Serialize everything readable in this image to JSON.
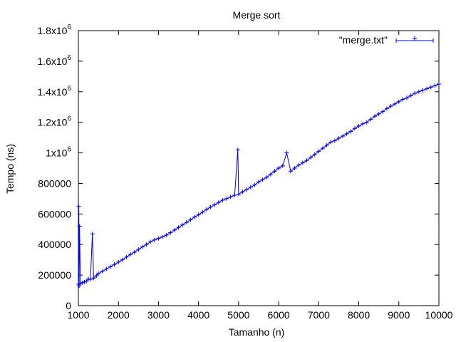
{
  "chart_data": {
    "type": "line",
    "title": "Merge sort",
    "xlabel": "Tamanho (n)",
    "ylabel": "Tempo (ns)",
    "xlim": [
      1000,
      10000
    ],
    "ylim": [
      0,
      1800000
    ],
    "x_ticks": [
      {
        "value": 1000,
        "label": "1000"
      },
      {
        "value": 2000,
        "label": "2000"
      },
      {
        "value": 3000,
        "label": "3000"
      },
      {
        "value": 4000,
        "label": "4000"
      },
      {
        "value": 5000,
        "label": "5000"
      },
      {
        "value": 6000,
        "label": "6000"
      },
      {
        "value": 7000,
        "label": "7000"
      },
      {
        "value": 8000,
        "label": "8000"
      },
      {
        "value": 9000,
        "label": "9000"
      },
      {
        "value": 10000,
        "label": "10000"
      }
    ],
    "y_ticks": [
      {
        "value": 0,
        "label": "0"
      },
      {
        "value": 200000,
        "label": "200000"
      },
      {
        "value": 400000,
        "label": "400000"
      },
      {
        "value": 600000,
        "label": "600000"
      },
      {
        "value": 800000,
        "label": "800000"
      },
      {
        "value": 1000000,
        "base": "1x10",
        "exp": "6"
      },
      {
        "value": 1200000,
        "base": "1.2x10",
        "exp": "6"
      },
      {
        "value": 1400000,
        "base": "1.4x10",
        "exp": "6"
      },
      {
        "value": 1600000,
        "base": "1.6x10",
        "exp": "6"
      },
      {
        "value": 1800000,
        "base": "1.8x10",
        "exp": "6"
      }
    ],
    "grid": false,
    "legend": "top-right",
    "series": [
      {
        "name": "\"merge.txt\"",
        "color": "#0000ff",
        "marker": "plus",
        "points": [
          [
            1000,
            140000
          ],
          [
            1010,
            650000
          ],
          [
            1020,
            130000
          ],
          [
            1030,
            520000
          ],
          [
            1050,
            145000
          ],
          [
            1100,
            150000
          ],
          [
            1150,
            155000
          ],
          [
            1200,
            160000
          ],
          [
            1250,
            175000
          ],
          [
            1300,
            172000
          ],
          [
            1350,
            470000
          ],
          [
            1380,
            180000
          ],
          [
            1450,
            195000
          ],
          [
            1500,
            210000
          ],
          [
            1600,
            225000
          ],
          [
            1700,
            240000
          ],
          [
            1800,
            255000
          ],
          [
            1900,
            270000
          ],
          [
            2000,
            285000
          ],
          [
            2100,
            300000
          ],
          [
            2200,
            318000
          ],
          [
            2300,
            335000
          ],
          [
            2400,
            350000
          ],
          [
            2500,
            368000
          ],
          [
            2600,
            385000
          ],
          [
            2700,
            400000
          ],
          [
            2800,
            418000
          ],
          [
            2900,
            430000
          ],
          [
            3000,
            440000
          ],
          [
            3100,
            450000
          ],
          [
            3200,
            462000
          ],
          [
            3300,
            478000
          ],
          [
            3400,
            495000
          ],
          [
            3500,
            512000
          ],
          [
            3600,
            528000
          ],
          [
            3700,
            545000
          ],
          [
            3800,
            562000
          ],
          [
            3900,
            580000
          ],
          [
            4000,
            595000
          ],
          [
            4100,
            612000
          ],
          [
            4200,
            630000
          ],
          [
            4300,
            645000
          ],
          [
            4400,
            660000
          ],
          [
            4500,
            675000
          ],
          [
            4600,
            690000
          ],
          [
            4700,
            700000
          ],
          [
            4800,
            712000
          ],
          [
            4900,
            722000
          ],
          [
            4980,
            1020000
          ],
          [
            5000,
            730000
          ],
          [
            5100,
            745000
          ],
          [
            5200,
            760000
          ],
          [
            5300,
            775000
          ],
          [
            5400,
            790000
          ],
          [
            5500,
            810000
          ],
          [
            5600,
            825000
          ],
          [
            5700,
            840000
          ],
          [
            5800,
            860000
          ],
          [
            5900,
            880000
          ],
          [
            6000,
            900000
          ],
          [
            6100,
            915000
          ],
          [
            6200,
            1000000
          ],
          [
            6300,
            880000
          ],
          [
            6400,
            900000
          ],
          [
            6500,
            920000
          ],
          [
            6600,
            935000
          ],
          [
            6700,
            950000
          ],
          [
            6800,
            970000
          ],
          [
            6900,
            990000
          ],
          [
            7000,
            1010000
          ],
          [
            7100,
            1030000
          ],
          [
            7200,
            1050000
          ],
          [
            7300,
            1070000
          ],
          [
            7400,
            1080000
          ],
          [
            7500,
            1095000
          ],
          [
            7600,
            1110000
          ],
          [
            7700,
            1125000
          ],
          [
            7800,
            1140000
          ],
          [
            7900,
            1160000
          ],
          [
            8000,
            1175000
          ],
          [
            8100,
            1190000
          ],
          [
            8200,
            1200000
          ],
          [
            8300,
            1220000
          ],
          [
            8400,
            1240000
          ],
          [
            8500,
            1255000
          ],
          [
            8600,
            1270000
          ],
          [
            8700,
            1290000
          ],
          [
            8800,
            1305000
          ],
          [
            8900,
            1320000
          ],
          [
            9000,
            1335000
          ],
          [
            9100,
            1350000
          ],
          [
            9200,
            1360000
          ],
          [
            9300,
            1375000
          ],
          [
            9400,
            1390000
          ],
          [
            9500,
            1400000
          ],
          [
            9600,
            1410000
          ],
          [
            9700,
            1420000
          ],
          [
            9800,
            1430000
          ],
          [
            9900,
            1440000
          ],
          [
            10000,
            1450000
          ]
        ]
      }
    ]
  }
}
